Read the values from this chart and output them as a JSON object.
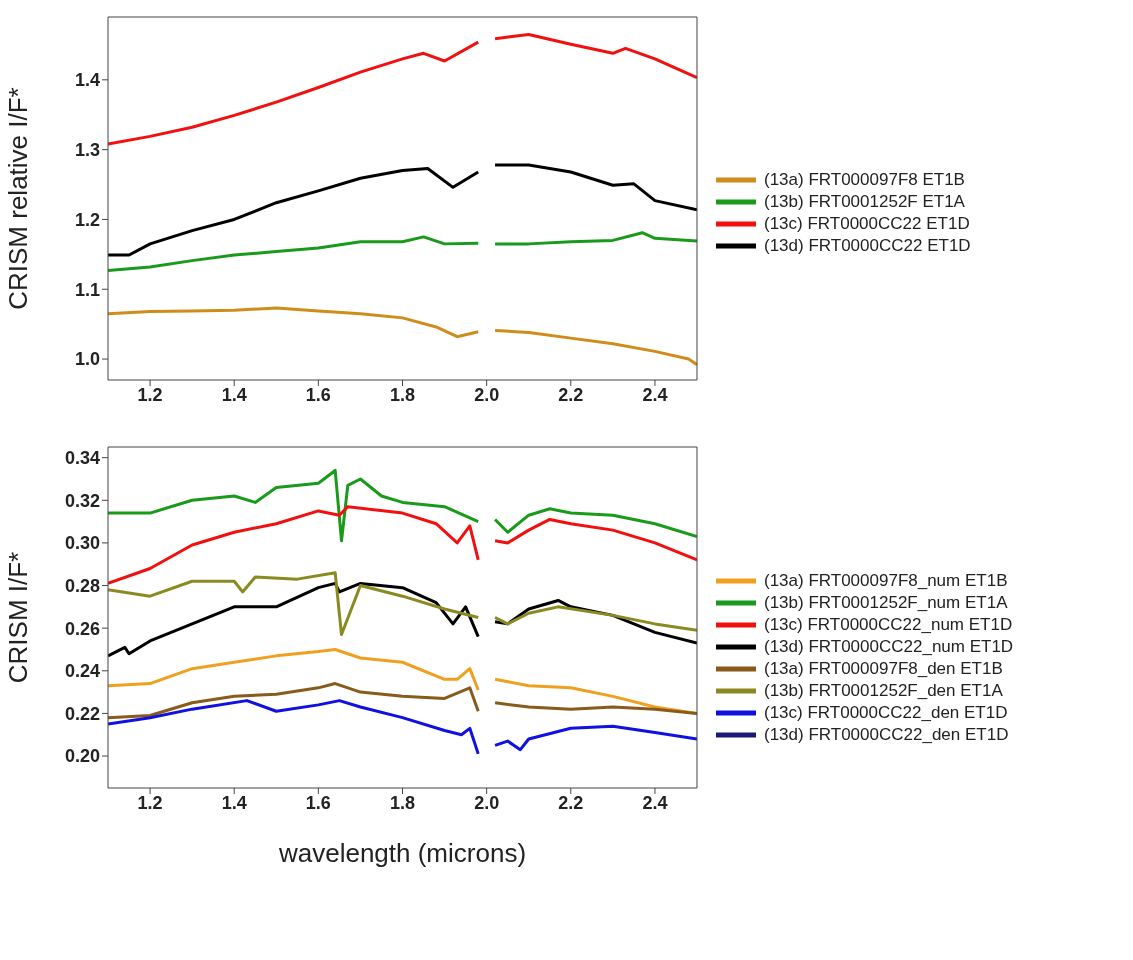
{
  "chart_data": [
    {
      "type": "line",
      "ylabel": "CRISM relative I/F*",
      "xlim": [
        1.1,
        2.5
      ],
      "xticks": [
        1.2,
        1.4,
        1.6,
        1.8,
        {
          "value": 2,
          "label": "2.0"
        },
        2.2,
        2.4
      ],
      "ylim": [
        0.97,
        1.49
      ],
      "yticks": [
        {
          "value": 1,
          "label": "1.0"
        },
        1.1,
        1.2,
        1.3,
        1.4
      ],
      "legend": "right",
      "series": [
        {
          "name": "(13a) FRT000097F8 ET1B",
          "color": "#d08c1a",
          "x": [
            1.1,
            1.2,
            1.3,
            1.4,
            1.5,
            1.6,
            1.7,
            1.8,
            1.88,
            1.93,
            1.98,
            2.0,
            2.02,
            2.1,
            2.2,
            2.3,
            2.4,
            2.48,
            2.5
          ],
          "values": [
            1.065,
            1.068,
            1.069,
            1.07,
            1.073,
            1.069,
            1.065,
            1.059,
            1.046,
            1.032,
            1.039,
            null,
            1.041,
            1.038,
            1.03,
            1.022,
            1.011,
            1.0,
            0.992
          ]
        },
        {
          "name": "(13b) FRT0001252F ET1A",
          "color": "#1a9a1a",
          "x": [
            1.1,
            1.2,
            1.3,
            1.4,
            1.5,
            1.6,
            1.7,
            1.8,
            1.85,
            1.9,
            1.98,
            2.0,
            2.02,
            2.1,
            2.2,
            2.3,
            2.37,
            2.4,
            2.5
          ],
          "values": [
            1.127,
            1.132,
            1.141,
            1.149,
            1.154,
            1.159,
            1.168,
            1.168,
            1.175,
            1.165,
            1.166,
            null,
            1.165,
            1.165,
            1.168,
            1.17,
            1.181,
            1.173,
            1.169
          ]
        },
        {
          "name": "(13c) FRT0000CC22 ET1D",
          "color": "#f01010",
          "x": [
            1.1,
            1.2,
            1.3,
            1.4,
            1.5,
            1.6,
            1.7,
            1.8,
            1.85,
            1.9,
            1.98,
            2.0,
            2.02,
            2.1,
            2.2,
            2.3,
            2.33,
            2.4,
            2.5
          ],
          "values": [
            1.308,
            1.319,
            1.332,
            1.349,
            1.368,
            1.389,
            1.411,
            1.43,
            1.438,
            1.427,
            1.454,
            null,
            1.459,
            1.465,
            1.451,
            1.438,
            1.445,
            1.43,
            1.403
          ]
        },
        {
          "name": "(13d) FRT0000CC22 ET1D",
          "color": "#000000",
          "x": [
            1.1,
            1.15,
            1.2,
            1.3,
            1.4,
            1.5,
            1.6,
            1.7,
            1.8,
            1.86,
            1.92,
            1.98,
            2.0,
            2.02,
            2.1,
            2.2,
            2.3,
            2.35,
            2.4,
            2.5
          ],
          "values": [
            1.149,
            1.149,
            1.165,
            1.184,
            1.2,
            1.224,
            1.241,
            1.259,
            1.27,
            1.273,
            1.246,
            1.268,
            null,
            1.278,
            1.278,
            1.268,
            1.249,
            1.251,
            1.227,
            1.214
          ]
        }
      ]
    },
    {
      "type": "line",
      "xlabel": "wavelength (microns)",
      "ylabel": "CRISM  I/F*",
      "xlim": [
        1.1,
        2.5
      ],
      "xticks": [
        1.2,
        1.4,
        1.6,
        1.8,
        {
          "value": 2,
          "label": "2.0"
        },
        2.2,
        2.4
      ],
      "ylim": [
        0.185,
        0.345
      ],
      "yticks": [
        {
          "value": 0.2,
          "label": "0.20"
        },
        0.22,
        0.24,
        0.26,
        0.28,
        {
          "value": 0.3,
          "label": "0.30"
        },
        0.32,
        0.34
      ],
      "legend": "right",
      "series": [
        {
          "name": "(13a) FRT000097F8_num ET1B",
          "color": "#f0a020",
          "x": [
            1.1,
            1.2,
            1.3,
            1.4,
            1.5,
            1.6,
            1.64,
            1.7,
            1.8,
            1.9,
            1.93,
            1.96,
            1.98,
            2.0,
            2.02,
            2.1,
            2.2,
            2.3,
            2.4,
            2.5
          ],
          "values": [
            0.233,
            0.234,
            0.241,
            0.244,
            0.247,
            0.249,
            0.25,
            0.246,
            0.244,
            0.236,
            0.236,
            0.241,
            0.231,
            null,
            0.236,
            0.233,
            0.232,
            0.228,
            0.223,
            0.22
          ]
        },
        {
          "name": "(13b) FRT0001252F_num ET1A",
          "color": "#1a9a1a",
          "x": [
            1.1,
            1.2,
            1.3,
            1.4,
            1.45,
            1.5,
            1.6,
            1.64,
            1.655,
            1.67,
            1.7,
            1.75,
            1.8,
            1.9,
            1.98,
            2.0,
            2.02,
            2.05,
            2.1,
            2.15,
            2.2,
            2.3,
            2.4,
            2.5
          ],
          "values": [
            0.314,
            0.314,
            0.32,
            0.322,
            0.319,
            0.326,
            0.328,
            0.334,
            0.301,
            0.327,
            0.33,
            0.322,
            0.319,
            0.317,
            0.31,
            null,
            0.311,
            0.305,
            0.313,
            0.316,
            0.314,
            0.313,
            0.309,
            0.303
          ]
        },
        {
          "name": "(13c) FRT0000CC22_num ET1D",
          "color": "#f01010",
          "x": [
            1.1,
            1.2,
            1.3,
            1.4,
            1.5,
            1.6,
            1.65,
            1.67,
            1.8,
            1.88,
            1.93,
            1.96,
            1.98,
            2.0,
            2.02,
            2.05,
            2.1,
            2.15,
            2.2,
            2.3,
            2.4,
            2.5
          ],
          "values": [
            0.281,
            0.288,
            0.299,
            0.305,
            0.309,
            0.315,
            0.313,
            0.317,
            0.314,
            0.309,
            0.3,
            0.308,
            0.292,
            null,
            0.301,
            0.3,
            0.306,
            0.311,
            0.309,
            0.306,
            0.3,
            0.292
          ]
        },
        {
          "name": "(13d) FRT0000CC22_num ET1D",
          "color": "#000000",
          "x": [
            1.1,
            1.14,
            1.15,
            1.2,
            1.3,
            1.4,
            1.5,
            1.6,
            1.64,
            1.65,
            1.7,
            1.8,
            1.88,
            1.92,
            1.95,
            1.98,
            2.0,
            2.02,
            2.05,
            2.1,
            2.17,
            2.2,
            2.3,
            2.4,
            2.5
          ],
          "values": [
            0.247,
            0.251,
            0.248,
            0.254,
            0.262,
            0.27,
            0.27,
            0.279,
            0.281,
            0.277,
            0.281,
            0.279,
            0.272,
            0.262,
            0.27,
            0.256,
            null,
            0.263,
            0.262,
            0.269,
            0.273,
            0.27,
            0.266,
            0.258,
            0.253
          ]
        },
        {
          "name": "(13a) FRT000097F8_den ET1B",
          "color": "#8a5a1a",
          "x": [
            1.1,
            1.2,
            1.3,
            1.4,
            1.5,
            1.6,
            1.64,
            1.7,
            1.8,
            1.9,
            1.96,
            1.98,
            2.0,
            2.02,
            2.1,
            2.2,
            2.3,
            2.4,
            2.5
          ],
          "values": [
            0.218,
            0.219,
            0.225,
            0.228,
            0.229,
            0.232,
            0.234,
            0.23,
            0.228,
            0.227,
            0.232,
            0.221,
            null,
            0.225,
            0.223,
            0.222,
            0.223,
            0.222,
            0.22
          ]
        },
        {
          "name": "(13b) FRT0001252F_den ET1A",
          "color": "#8a8a20",
          "x": [
            1.1,
            1.2,
            1.3,
            1.4,
            1.42,
            1.45,
            1.55,
            1.64,
            1.655,
            1.7,
            1.8,
            1.9,
            1.98,
            2.0,
            2.02,
            2.05,
            2.1,
            2.17,
            2.3,
            2.4,
            2.5
          ],
          "values": [
            0.278,
            0.275,
            0.282,
            0.282,
            0.277,
            0.284,
            0.283,
            0.286,
            0.257,
            0.28,
            0.275,
            0.269,
            0.265,
            null,
            0.265,
            0.262,
            0.267,
            0.27,
            0.266,
            0.262,
            0.259
          ]
        },
        {
          "name": "(13c) FRT0000CC22_den ET1D",
          "color": "#1010e0",
          "x": [
            1.1,
            1.2,
            1.3,
            1.43,
            1.5,
            1.6,
            1.65,
            1.7,
            1.8,
            1.9,
            1.94,
            1.96,
            1.98,
            2.0,
            2.02,
            2.05,
            2.08,
            2.1,
            2.2,
            2.3,
            2.4,
            2.5
          ],
          "values": [
            0.215,
            0.218,
            0.222,
            0.226,
            0.221,
            0.224,
            0.226,
            0.223,
            0.218,
            0.212,
            0.21,
            0.213,
            0.201,
            null,
            0.205,
            0.207,
            0.203,
            0.208,
            0.213,
            0.214,
            0.211,
            0.208
          ]
        },
        {
          "name": "(13d) FRT0000CC22_den ET1D",
          "color": "#1a1a7a"
        }
      ]
    }
  ]
}
